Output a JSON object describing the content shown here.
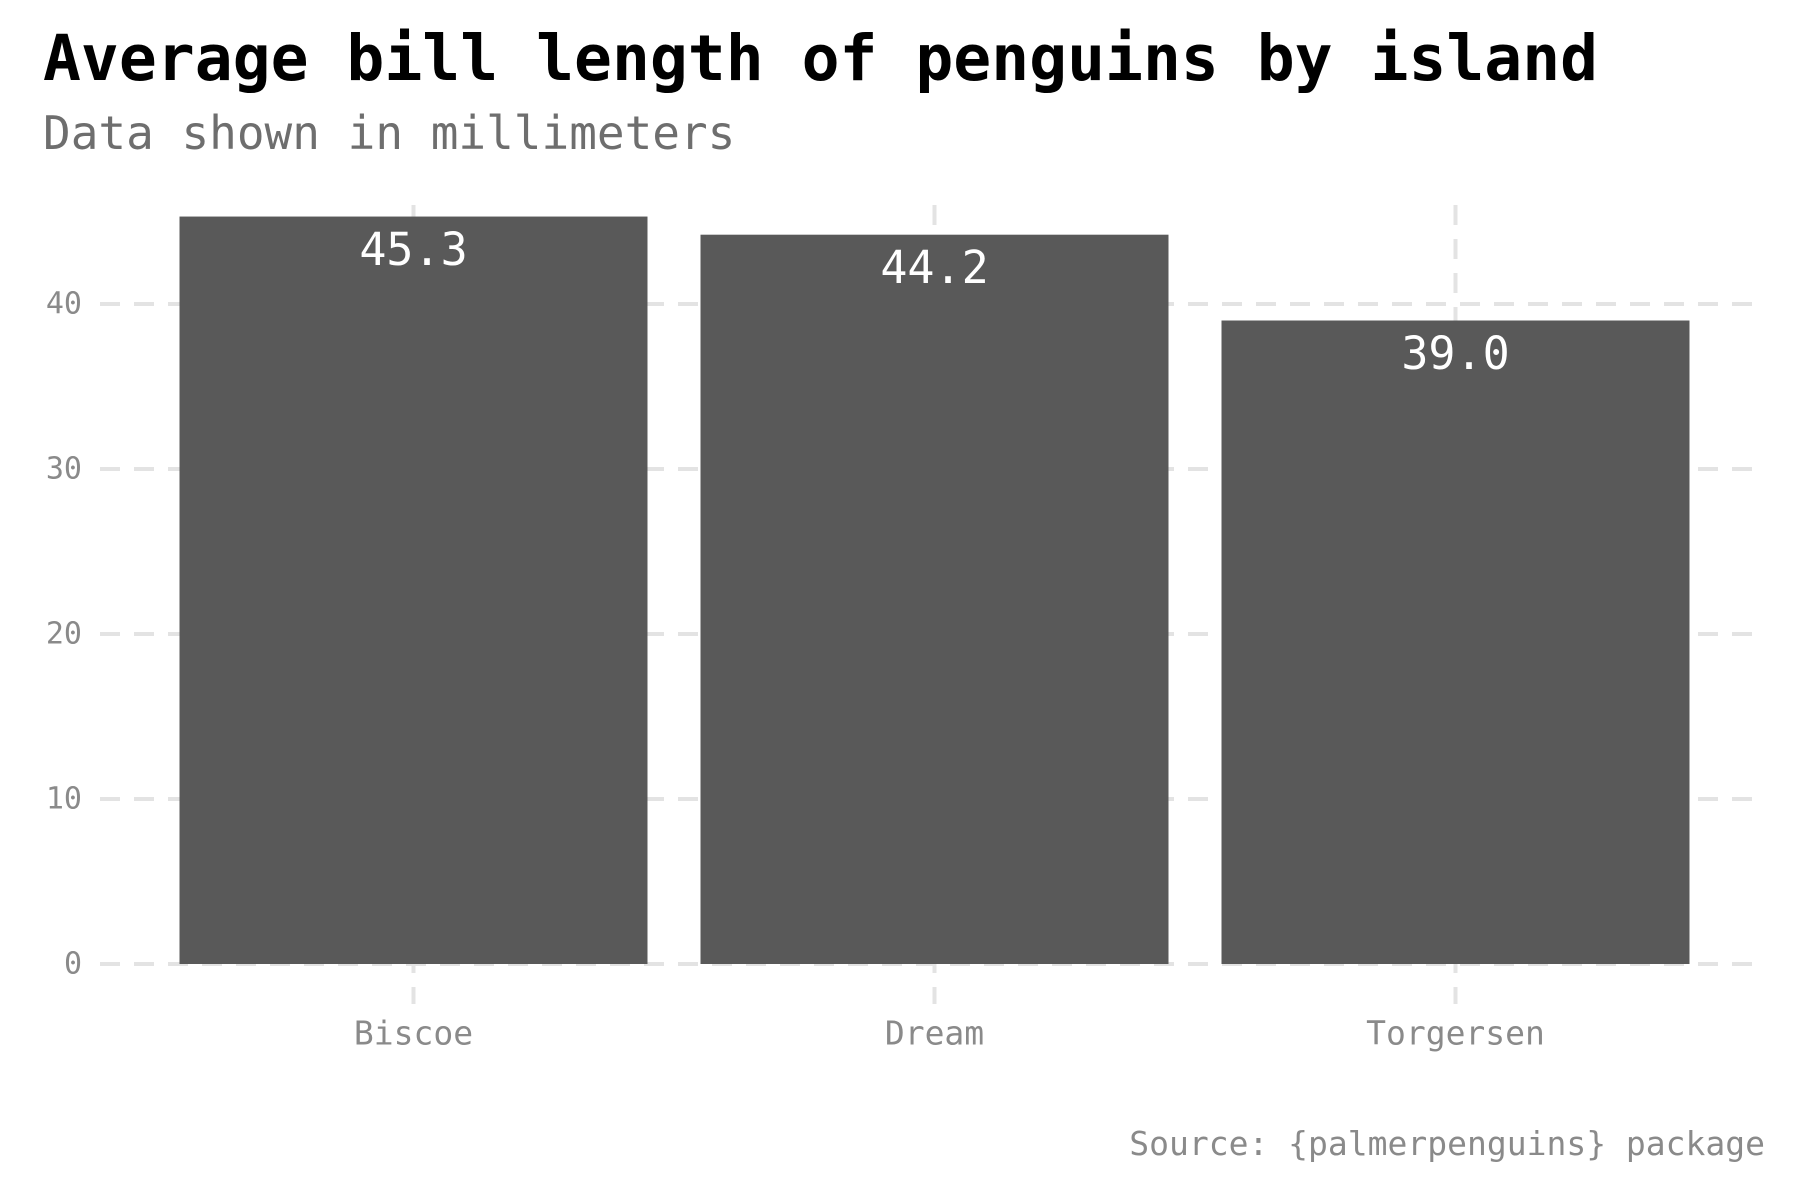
{
  "chart_data": {
    "type": "bar",
    "title": "Average bill length of penguins by island",
    "subtitle": "Data shown in millimeters",
    "caption": "Source: {palmerpenguins} package",
    "categories": [
      "Biscoe",
      "Dream",
      "Torgersen"
    ],
    "values": [
      45.3,
      44.2,
      39.0
    ],
    "data_labels": [
      "45.3",
      "44.2",
      "39.0"
    ],
    "ylim": [
      0,
      46
    ],
    "y_ticks": [
      0,
      10,
      20,
      30,
      40
    ],
    "grid": true,
    "legend": "none",
    "bar_color": "#595959",
    "label_color": "#ffffff",
    "grid_color": "#e3e3e3"
  }
}
